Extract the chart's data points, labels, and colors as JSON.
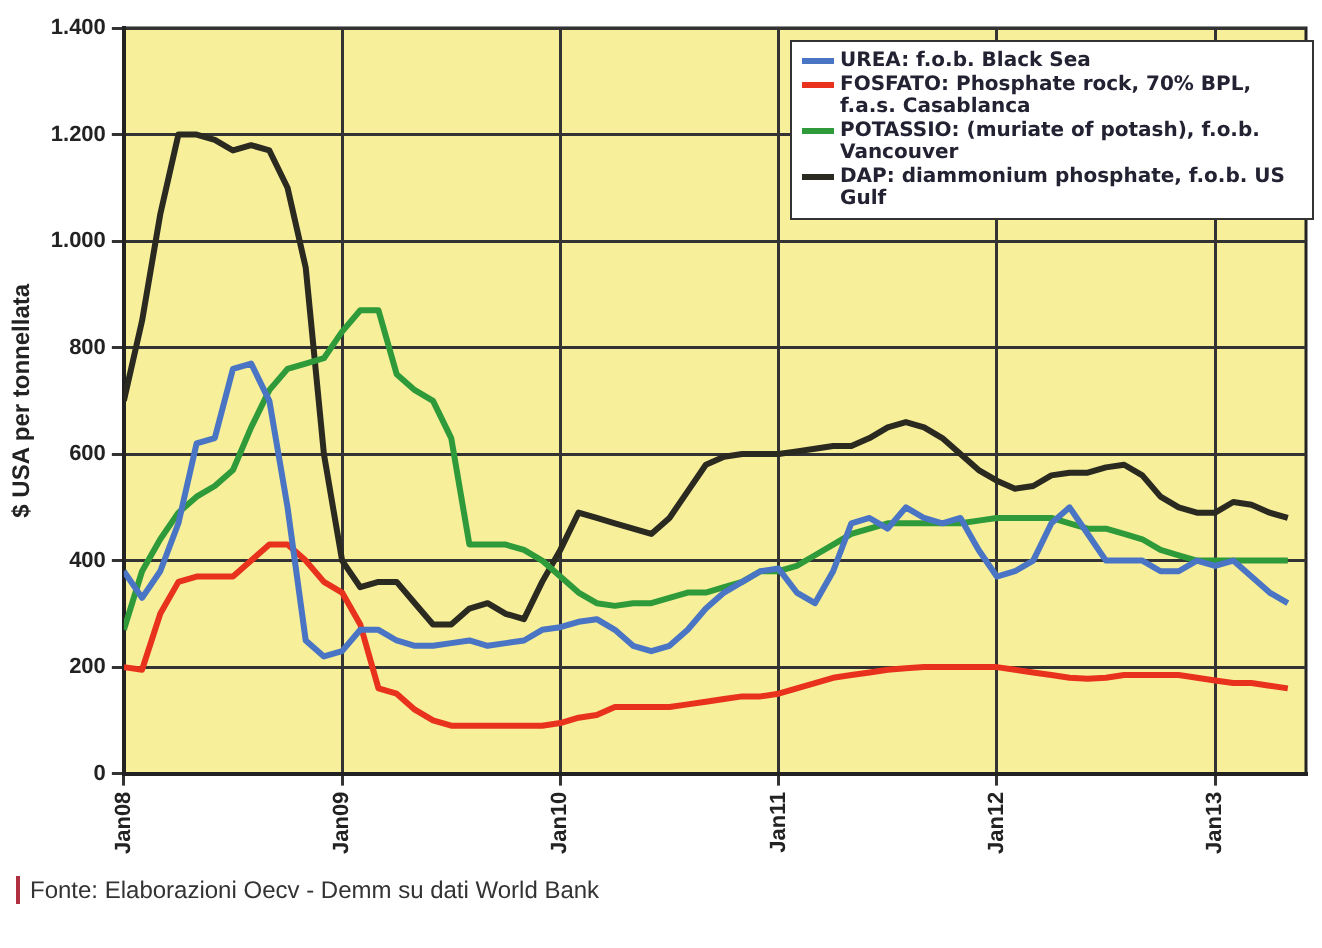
{
  "chart_data": {
    "type": "line",
    "ylabel": "$ USA per tonnellata",
    "annotations": [
      "Fonte: Elaborazioni Oecv - Demm su dati World Bank"
    ],
    "x": [
      "2008-01",
      "2008-02",
      "2008-03",
      "2008-04",
      "2008-05",
      "2008-06",
      "2008-07",
      "2008-08",
      "2008-09",
      "2008-10",
      "2008-11",
      "2008-12",
      "2009-01",
      "2009-02",
      "2009-03",
      "2009-04",
      "2009-05",
      "2009-06",
      "2009-07",
      "2009-08",
      "2009-09",
      "2009-10",
      "2009-11",
      "2009-12",
      "2010-01",
      "2010-02",
      "2010-03",
      "2010-04",
      "2010-05",
      "2010-06",
      "2010-07",
      "2010-08",
      "2010-09",
      "2010-10",
      "2010-11",
      "2010-12",
      "2011-01",
      "2011-02",
      "2011-03",
      "2011-04",
      "2011-05",
      "2011-06",
      "2011-07",
      "2011-08",
      "2011-09",
      "2011-10",
      "2011-11",
      "2011-12",
      "2012-01",
      "2012-02",
      "2012-03",
      "2012-04",
      "2012-05",
      "2012-06",
      "2012-07",
      "2012-08",
      "2012-09",
      "2012-10",
      "2012-11",
      "2012-12",
      "2013-01",
      "2013-02",
      "2013-03",
      "2013-04",
      "2013-05"
    ],
    "series": [
      {
        "name": "UREA: f.o.b. Black Sea",
        "color": "#4a74c4",
        "values": [
          380,
          330,
          380,
          470,
          620,
          630,
          760,
          770,
          700,
          500,
          250,
          220,
          230,
          270,
          270,
          250,
          240,
          240,
          245,
          250,
          240,
          245,
          250,
          270,
          275,
          285,
          290,
          270,
          240,
          230,
          240,
          270,
          310,
          340,
          360,
          380,
          385,
          340,
          320,
          380,
          470,
          480,
          460,
          500,
          480,
          470,
          480,
          420,
          370,
          380,
          400,
          470,
          500,
          450,
          400,
          400,
          400,
          380,
          380,
          400,
          390,
          400,
          370,
          340,
          320
        ]
      },
      {
        "name": "FOSFATO: Phosphate rock, 70% BPL, f.a.s. Casablanca",
        "color": "#e8321e",
        "values": [
          200,
          195,
          300,
          360,
          370,
          370,
          370,
          400,
          430,
          430,
          400,
          360,
          340,
          280,
          160,
          150,
          120,
          100,
          90,
          90,
          90,
          90,
          90,
          90,
          95,
          105,
          110,
          125,
          125,
          125,
          125,
          130,
          135,
          140,
          145,
          145,
          150,
          160,
          170,
          180,
          185,
          190,
          195,
          198,
          200,
          200,
          200,
          200,
          200,
          195,
          190,
          185,
          180,
          178,
          180,
          185,
          185,
          185,
          185,
          180,
          175,
          170,
          170,
          165,
          160
        ]
      },
      {
        "name": "POTASSIO: (muriate of potash), f.o.b. Vancouver",
        "color": "#2e9a3a",
        "values": [
          270,
          380,
          440,
          490,
          520,
          540,
          570,
          650,
          720,
          760,
          770,
          780,
          830,
          870,
          870,
          750,
          720,
          700,
          630,
          430,
          430,
          430,
          420,
          400,
          370,
          340,
          320,
          315,
          320,
          320,
          330,
          340,
          340,
          350,
          360,
          380,
          380,
          390,
          410,
          430,
          450,
          460,
          470,
          470,
          470,
          470,
          470,
          475,
          480,
          480,
          480,
          480,
          470,
          460,
          460,
          450,
          440,
          420,
          410,
          400,
          400,
          400,
          400,
          400,
          400
        ]
      },
      {
        "name": "DAP: diammonium phosphate, f.o.b. US Gulf",
        "color": "#2a2a20",
        "values": [
          700,
          850,
          1050,
          1200,
          1200,
          1190,
          1170,
          1180,
          1170,
          1100,
          950,
          600,
          400,
          350,
          360,
          360,
          320,
          280,
          280,
          310,
          320,
          300,
          290,
          360,
          420,
          490,
          480,
          470,
          460,
          450,
          480,
          530,
          580,
          595,
          600,
          600,
          600,
          605,
          610,
          615,
          615,
          630,
          650,
          660,
          650,
          630,
          600,
          570,
          550,
          535,
          540,
          560,
          565,
          565,
          575,
          580,
          560,
          520,
          500,
          490,
          490,
          510,
          505,
          490,
          480
        ]
      }
    ],
    "xlim": [
      "2008-01",
      "2013-06"
    ],
    "xticks": [
      {
        "value": "2008-01",
        "label": "Jan08"
      },
      {
        "value": "2009-01",
        "label": "Jan09"
      },
      {
        "value": "2010-01",
        "label": "Jan10"
      },
      {
        "value": "2011-01",
        "label": "Jan11"
      },
      {
        "value": "2012-01",
        "label": "Jan12"
      },
      {
        "value": "2013-01",
        "label": "Jan13"
      }
    ],
    "ylim": [
      0,
      1400
    ],
    "yticks": [
      0,
      200,
      400,
      600,
      800,
      {
        "value": 1000,
        "label": "1.000"
      },
      {
        "value": 1200,
        "label": "1.200"
      },
      {
        "value": 1400,
        "label": "1.400"
      }
    ],
    "grid": true,
    "legend": "top right",
    "marker": "none",
    "line_style": "solid"
  }
}
